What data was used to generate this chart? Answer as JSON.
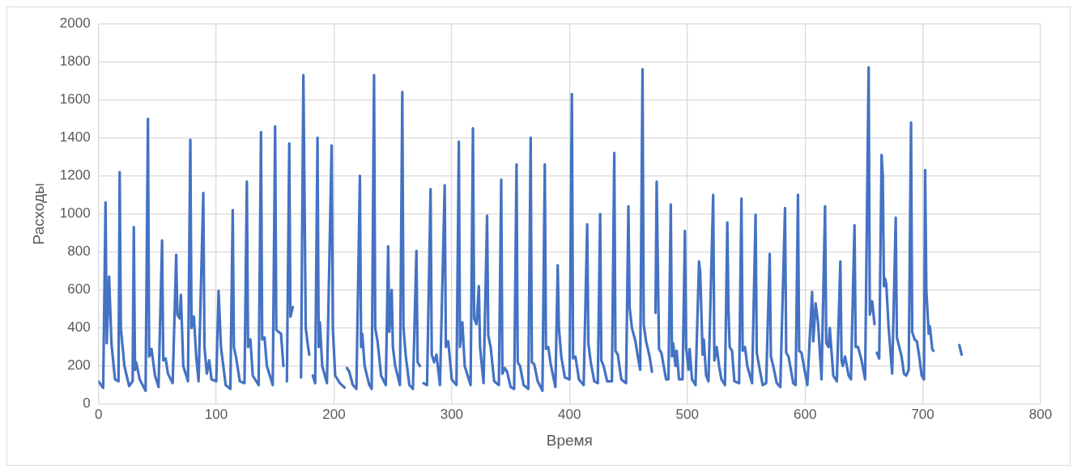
{
  "chart_data": {
    "type": "line",
    "xlabel": "Время",
    "ylabel": "Расходы",
    "xlim": [
      0,
      800
    ],
    "xticks": [
      0,
      100,
      200,
      300,
      400,
      500,
      600,
      700,
      800
    ],
    "ylim": [
      0,
      2000
    ],
    "yticks": [
      0,
      200,
      400,
      600,
      800,
      1000,
      1200,
      1400,
      1600,
      1800,
      2000
    ],
    "grid": true,
    "legend": false,
    "series": [
      {
        "color": "#4472c4",
        "x": [
          0,
          4,
          6,
          7,
          9,
          11,
          14,
          17,
          18,
          19,
          22,
          26,
          29,
          30,
          31,
          32,
          35,
          40,
          42,
          43,
          45,
          48,
          51,
          54,
          55,
          57,
          59,
          63,
          66,
          67,
          69,
          70,
          72,
          76,
          78,
          79,
          81,
          83,
          85,
          89,
          90,
          92,
          94,
          96,
          100,
          102,
          104,
          106,
          108,
          112,
          114,
          115,
          117,
          120,
          124,
          126,
          127,
          129,
          131,
          136,
          138,
          139,
          141,
          143,
          148,
          150,
          151,
          153,
          155,
          157,
          158,
          160,
          162,
          163,
          165,
          167,
          172,
          174,
          176,
          178,
          179,
          180,
          182,
          184,
          186,
          187,
          188,
          190,
          194,
          198,
          199,
          201,
          205,
          209,
          210,
          211,
          213,
          216,
          219,
          222,
          223,
          224,
          226,
          230,
          232,
          234,
          235,
          237,
          240,
          244,
          246,
          247,
          249,
          250,
          252,
          256,
          258,
          259,
          261,
          264,
          267,
          270,
          271,
          273,
          274,
          276,
          279,
          282,
          283,
          285,
          287,
          290,
          294,
          295,
          297,
          300,
          304,
          306,
          307,
          309,
          311,
          316,
          318,
          319,
          321,
          323,
          324,
          327,
          330,
          331,
          333,
          336,
          340,
          342,
          343,
          345,
          347,
          350,
          353,
          355,
          356,
          358,
          361,
          365,
          367,
          368,
          370,
          373,
          377,
          379,
          380,
          382,
          384,
          388,
          390,
          391,
          393,
          396,
          400,
          402,
          403,
          405,
          408,
          412,
          415,
          416,
          418,
          421,
          424,
          426,
          427,
          429,
          432,
          436,
          438,
          439,
          441,
          444,
          448,
          450,
          451,
          453,
          456,
          458,
          460,
          462,
          463,
          465,
          468,
          470,
          471,
          473,
          474,
          476,
          478,
          480,
          482,
          484,
          486,
          487,
          488,
          490,
          491,
          493,
          496,
          498,
          499,
          501,
          502,
          504,
          507,
          510,
          511,
          513,
          514,
          516,
          518,
          522,
          523,
          525,
          527,
          529,
          532,
          534,
          535,
          536,
          538,
          540,
          544,
          546,
          547,
          549,
          551,
          555,
          558,
          559,
          561,
          564,
          567,
          570,
          571,
          573,
          576,
          579,
          583,
          584,
          586,
          590,
          592,
          594,
          595,
          597,
          599,
          602,
          606,
          607,
          609,
          611,
          614,
          617,
          618,
          620,
          621,
          624,
          627,
          630,
          631,
          632,
          634,
          637,
          639,
          642,
          643,
          645,
          648,
          651,
          654,
          655,
          657,
          659,
          660,
          661,
          663,
          665,
          666,
          667,
          668,
          669,
          671,
          674,
          677,
          678,
          680,
          682,
          684,
          686,
          688,
          690,
          691,
          693,
          695,
          697,
          699,
          701,
          702,
          703,
          705,
          706,
          708,
          709,
          710,
          731,
          733
        ],
        "values": [
          120,
          85,
          1060,
          320,
          670,
          320,
          130,
          120,
          1220,
          400,
          200,
          95,
          120,
          930,
          180,
          220,
          130,
          70,
          1500,
          250,
          290,
          150,
          90,
          860,
          230,
          240,
          160,
          110,
          785,
          470,
          450,
          575,
          200,
          120,
          1390,
          400,
          460,
          250,
          120,
          1110,
          300,
          160,
          230,
          130,
          120,
          595,
          300,
          200,
          100,
          80,
          1020,
          300,
          240,
          120,
          110,
          1170,
          300,
          340,
          150,
          100,
          1430,
          340,
          350,
          200,
          100,
          1460,
          390,
          380,
          370,
          200,
          null,
          120,
          1370,
          460,
          510,
          null,
          140,
          1730,
          400,
          300,
          260,
          null,
          150,
          110,
          1400,
          300,
          430,
          200,
          110,
          1360,
          400,
          150,
          110,
          87,
          null,
          190,
          170,
          100,
          80,
          1200,
          300,
          370,
          200,
          100,
          80,
          1730,
          400,
          330,
          150,
          100,
          830,
          380,
          600,
          300,
          200,
          100,
          1640,
          400,
          250,
          100,
          80,
          805,
          220,
          200,
          null,
          110,
          100,
          1130,
          260,
          220,
          260,
          100,
          1150,
          300,
          330,
          130,
          100,
          1380,
          300,
          430,
          200,
          100,
          1450,
          450,
          420,
          620,
          300,
          110,
          990,
          360,
          300,
          120,
          100,
          1180,
          160,
          190,
          170,
          90,
          80,
          1260,
          220,
          200,
          100,
          80,
          1400,
          220,
          210,
          120,
          70,
          1260,
          290,
          300,
          210,
          90,
          730,
          400,
          250,
          140,
          130,
          1630,
          240,
          250,
          130,
          100,
          945,
          320,
          220,
          120,
          110,
          1000,
          230,
          200,
          120,
          120,
          1320,
          280,
          260,
          130,
          110,
          1040,
          510,
          400,
          330,
          250,
          180,
          1760,
          420,
          330,
          250,
          170,
          null,
          480,
          1170,
          290,
          270,
          200,
          130,
          130,
          1050,
          250,
          320,
          200,
          280,
          130,
          130,
          910,
          300,
          180,
          290,
          130,
          100,
          750,
          690,
          260,
          340,
          150,
          120,
          1100,
          230,
          300,
          200,
          130,
          100,
          955,
          490,
          300,
          280,
          120,
          110,
          1080,
          280,
          300,
          200,
          110,
          995,
          270,
          200,
          100,
          110,
          790,
          250,
          200,
          110,
          90,
          1030,
          270,
          250,
          110,
          100,
          1100,
          280,
          270,
          200,
          100,
          590,
          330,
          530,
          430,
          130,
          1040,
          320,
          300,
          400,
          150,
          120,
          750,
          230,
          200,
          250,
          150,
          130,
          940,
          300,
          300,
          230,
          130,
          1770,
          470,
          540,
          420,
          null,
          270,
          240,
          1310,
          1200,
          620,
          660,
          630,
          400,
          160,
          980,
          350,
          300,
          250,
          160,
          150,
          180,
          1480,
          380,
          340,
          330,
          250,
          150,
          130,
          1230,
          600,
          370,
          410,
          290,
          280,
          null,
          310,
          260
        ]
      }
    ]
  }
}
